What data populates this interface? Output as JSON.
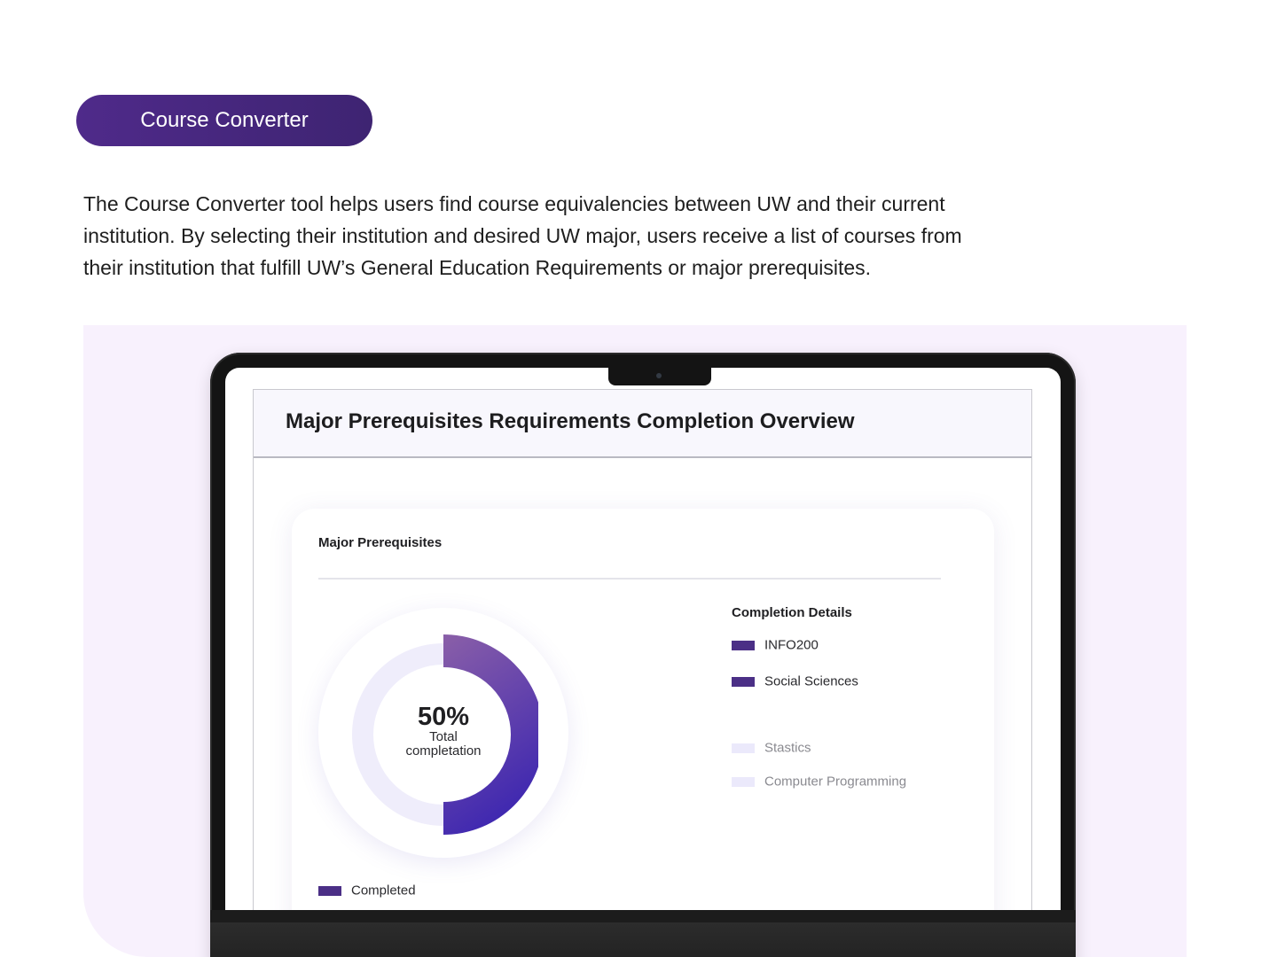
{
  "section_tag": "Course Converter",
  "intro": {
    "line1": "The Course Converter tool helps users find course equivalencies between UW and their current",
    "line2": "institution. By selecting their institution and desired UW major, users receive a list of courses from",
    "line3": "their institution that fulfill UW’s General Education Requirements or major prerequisites."
  },
  "app": {
    "title": "Major Prerequisites Requirements Completion Overview",
    "card": {
      "title": "Major Prerequisites",
      "donut": {
        "percent_label": "50%",
        "caption_line1": "Total",
        "caption_line2": "completation",
        "completion_fraction": 0.5
      },
      "details": {
        "title": "Completion Details",
        "completed": [
          "INFO200",
          "Social Sciences"
        ],
        "remaining": [
          "Stastics",
          "Computer Programming"
        ]
      },
      "key_label": "Completed"
    }
  },
  "colors": {
    "accent": "#4b2f86",
    "gradient_start": "#8a5fa8",
    "gradient_end": "#3f28b0",
    "track": "#efedfb",
    "showcase_bg": "#f8f1fd"
  }
}
